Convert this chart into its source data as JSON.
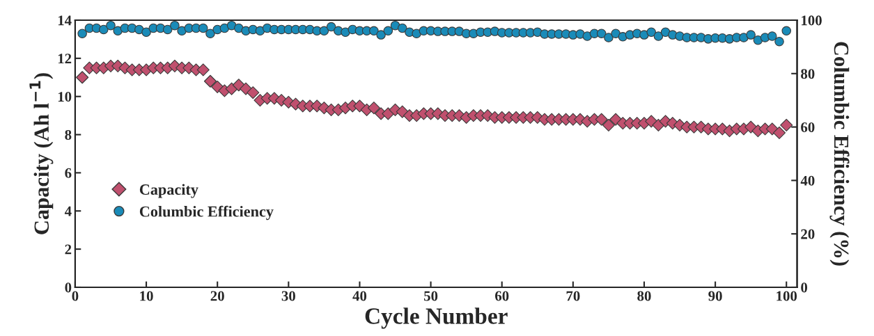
{
  "chart_data": {
    "type": "scatter",
    "xlabel": "Cycle Number",
    "ylabel": "Capacity (Ah l$^{−1}$)",
    "y2label": "Columbic Efficiency (%)",
    "x": [
      1,
      2,
      3,
      4,
      5,
      6,
      7,
      8,
      9,
      10,
      11,
      12,
      13,
      14,
      15,
      16,
      17,
      18,
      19,
      20,
      21,
      22,
      23,
      24,
      25,
      26,
      27,
      28,
      29,
      30,
      31,
      32,
      33,
      34,
      35,
      36,
      37,
      38,
      39,
      40,
      41,
      42,
      43,
      44,
      45,
      46,
      47,
      48,
      49,
      50,
      51,
      52,
      53,
      54,
      55,
      56,
      57,
      58,
      59,
      60,
      61,
      62,
      63,
      64,
      65,
      66,
      67,
      68,
      69,
      70,
      71,
      72,
      73,
      74,
      75,
      76,
      77,
      78,
      79,
      80,
      81,
      82,
      83,
      84,
      85,
      86,
      87,
      88,
      89,
      90,
      91,
      92,
      93,
      94,
      95,
      96,
      97,
      98,
      99,
      100
    ],
    "series": [
      {
        "name": "Capacity",
        "color": "#c0506e",
        "marker": "diamond",
        "values": [
          11.0,
          11.5,
          11.5,
          11.5,
          11.6,
          11.6,
          11.5,
          11.4,
          11.4,
          11.4,
          11.5,
          11.5,
          11.5,
          11.6,
          11.5,
          11.5,
          11.4,
          11.4,
          10.8,
          10.5,
          10.3,
          10.4,
          10.6,
          10.4,
          10.2,
          9.8,
          9.9,
          9.9,
          9.8,
          9.7,
          9.6,
          9.5,
          9.5,
          9.5,
          9.4,
          9.3,
          9.3,
          9.4,
          9.5,
          9.5,
          9.3,
          9.4,
          9.1,
          9.1,
          9.3,
          9.2,
          9.0,
          9.0,
          9.1,
          9.1,
          9.1,
          9.0,
          9.0,
          9.0,
          8.9,
          9.0,
          9.0,
          9.0,
          8.9,
          8.9,
          8.9,
          8.9,
          8.9,
          8.9,
          8.9,
          8.8,
          8.8,
          8.8,
          8.8,
          8.8,
          8.8,
          8.7,
          8.8,
          8.8,
          8.5,
          8.8,
          8.6,
          8.6,
          8.6,
          8.6,
          8.7,
          8.5,
          8.7,
          8.6,
          8.5,
          8.4,
          8.4,
          8.4,
          8.3,
          8.3,
          8.3,
          8.2,
          8.3,
          8.3,
          8.4,
          8.2,
          8.3,
          8.3,
          8.1,
          8.5
        ]
      },
      {
        "name": "Columbic Efficiency",
        "color": "#1a8bb8",
        "marker": "circle",
        "axis": "y2",
        "values": [
          95,
          97,
          97,
          96.5,
          98,
          96,
          97,
          97,
          96.5,
          95.5,
          97,
          97,
          96.5,
          98,
          96,
          97,
          97,
          97,
          95,
          96.5,
          97,
          98,
          97,
          96,
          96.5,
          96,
          97,
          96.5,
          96.5,
          96.5,
          96.5,
          96.5,
          96.5,
          96,
          96,
          97.5,
          96,
          95.5,
          96.5,
          96,
          96,
          96,
          94.5,
          96,
          98,
          97,
          95.5,
          95,
          96,
          96,
          95.8,
          95.8,
          95.8,
          95.8,
          95,
          95,
          95.5,
          95.5,
          95.8,
          95.3,
          95.3,
          95.3,
          95.3,
          95.3,
          95.5,
          94.8,
          94.8,
          94.8,
          94.8,
          94.5,
          94.8,
          94,
          95,
          95,
          93.5,
          95,
          93.8,
          94.5,
          95,
          94.5,
          95.5,
          94,
          95.5,
          94.5,
          94,
          93.5,
          93.5,
          93.5,
          93,
          93.3,
          93.3,
          93,
          93.5,
          93.5,
          94.5,
          92.5,
          93.5,
          94,
          92,
          96
        ]
      }
    ],
    "xlim": [
      0,
      101.5
    ],
    "xticks": [
      0,
      10,
      20,
      30,
      40,
      50,
      60,
      70,
      80,
      90,
      100
    ],
    "ylim": [
      0,
      14
    ],
    "yticks": [
      0,
      2,
      4,
      6,
      8,
      10,
      12,
      14
    ],
    "y2lim": [
      0,
      100
    ],
    "y2ticks": [
      0,
      20,
      40,
      60,
      80,
      100
    ],
    "legend": "bottom left",
    "grid": false
  }
}
